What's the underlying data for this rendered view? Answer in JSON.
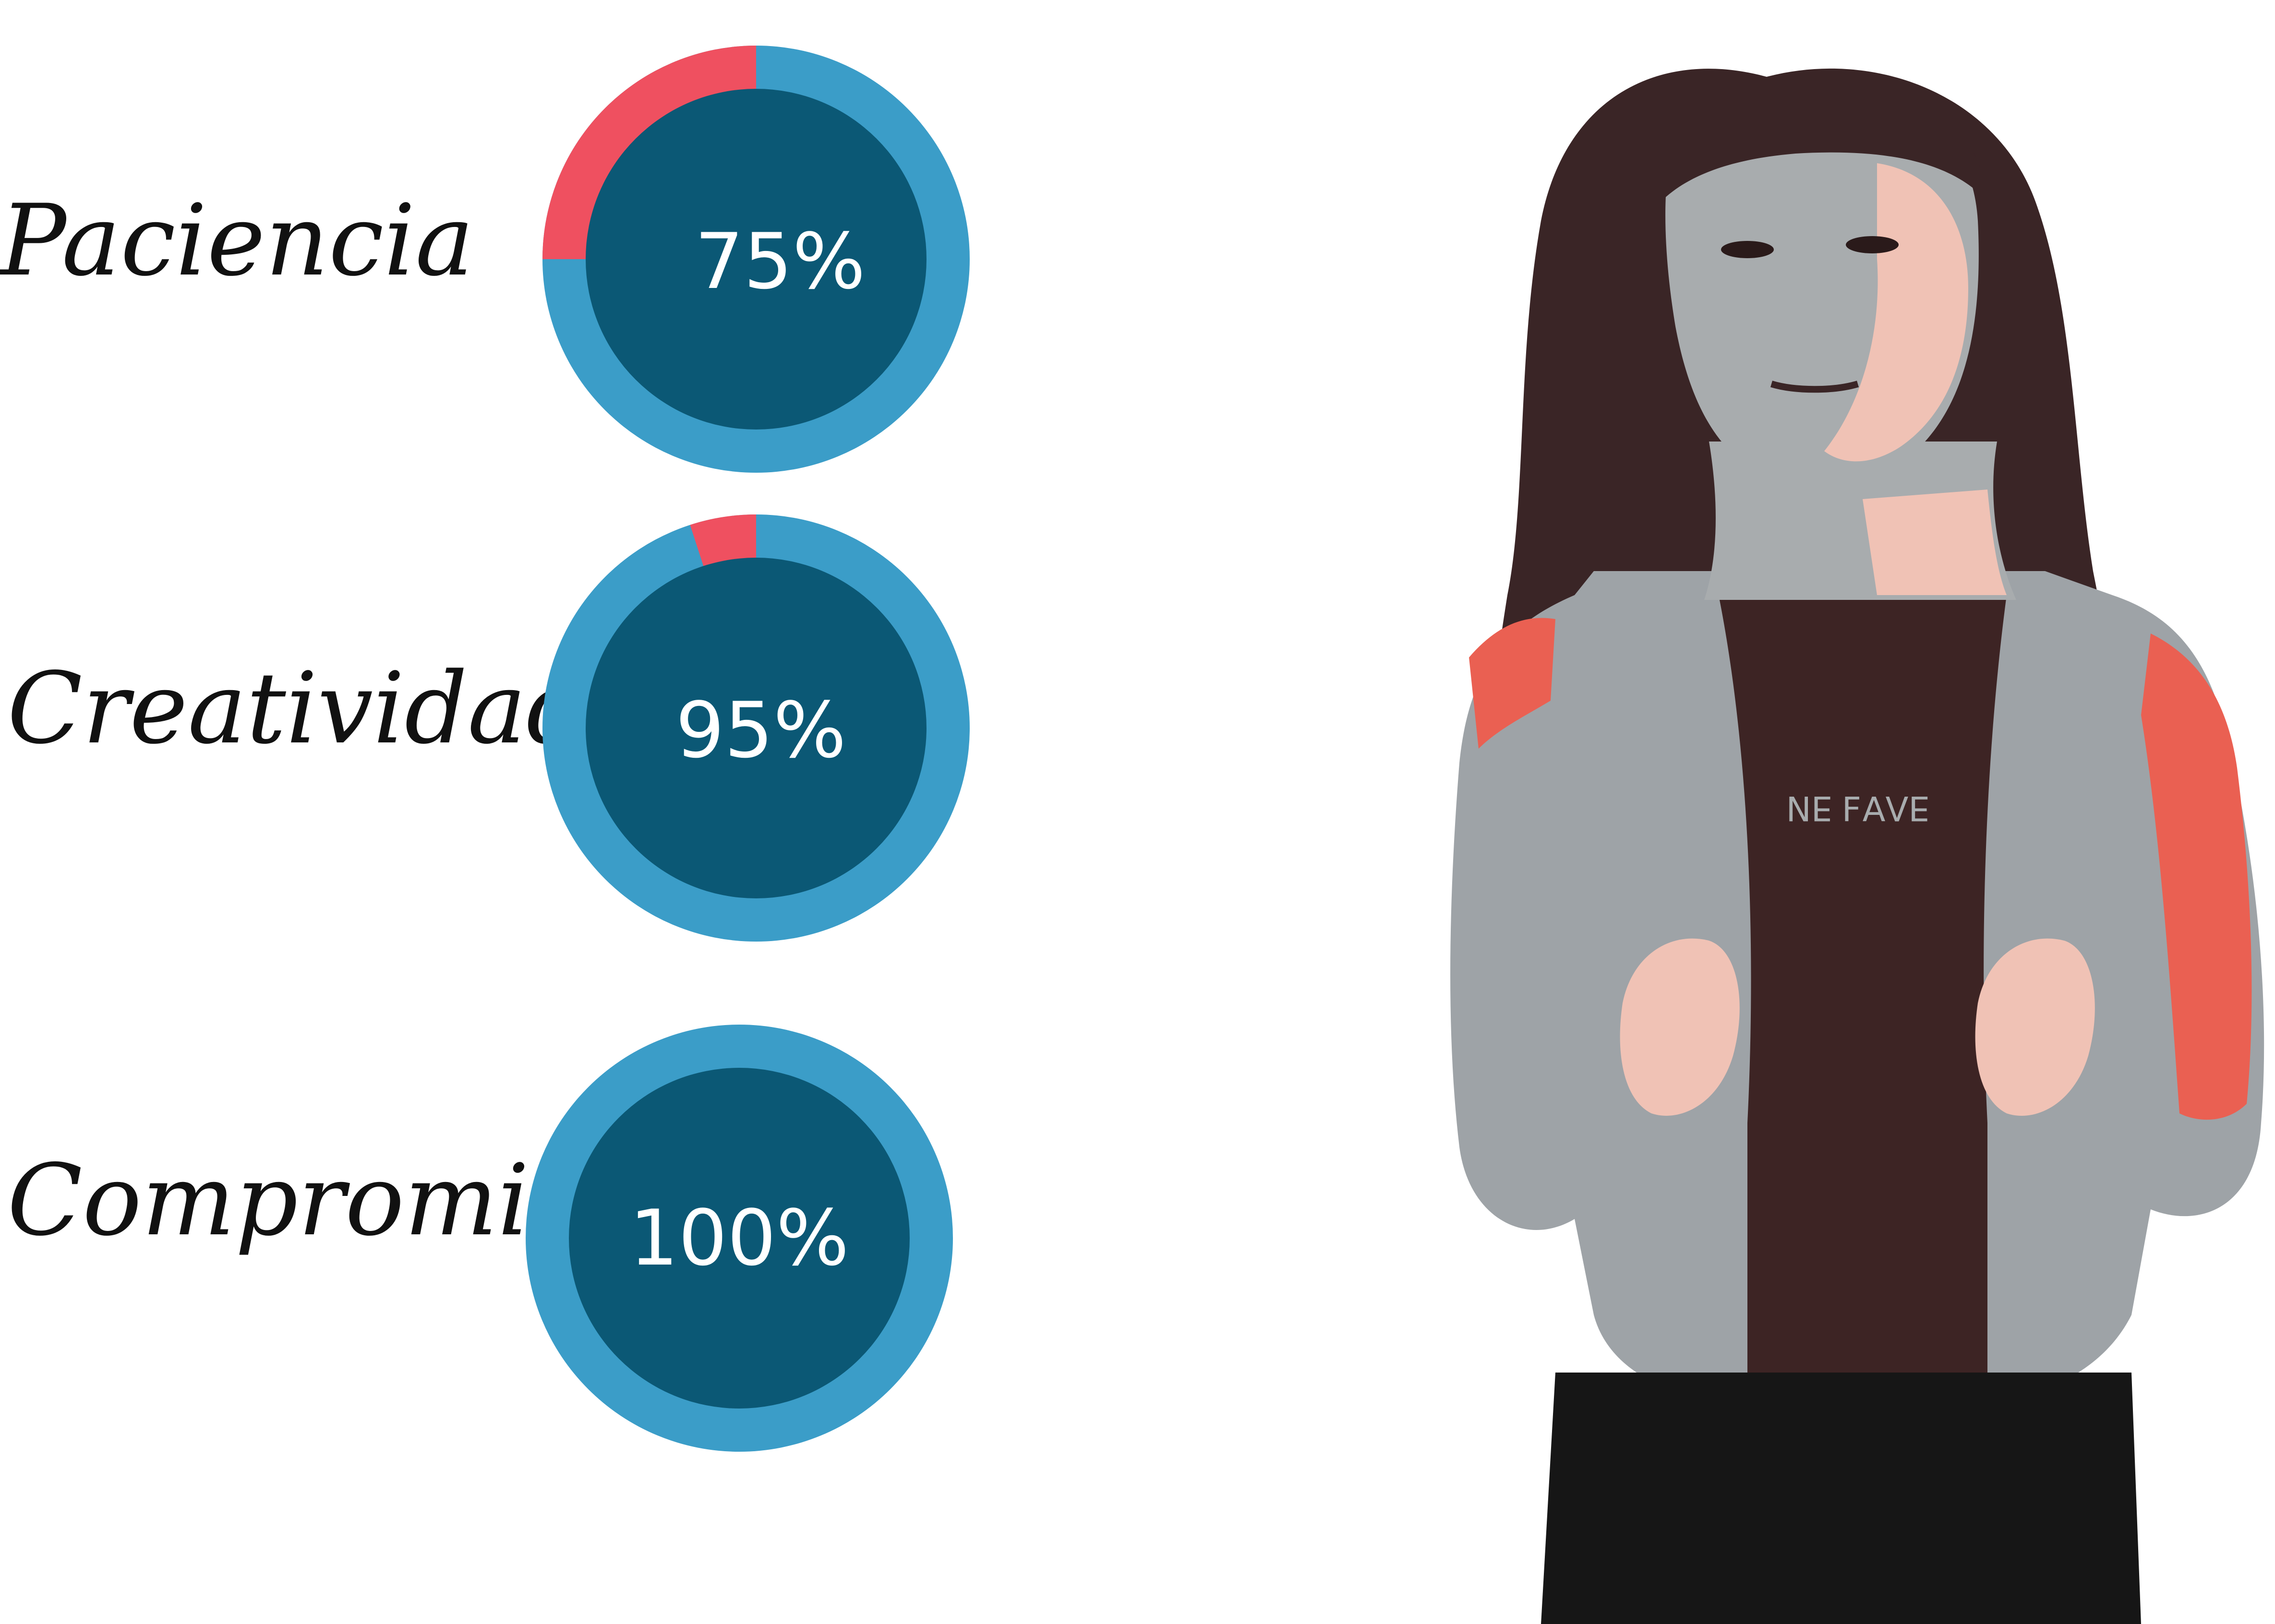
{
  "chart_data": {
    "type": "pie",
    "title": "",
    "colors": {
      "ring": "#3b9dc8",
      "remainder": "#ef5060",
      "inner": "#0b5875",
      "text": "#ffffff"
    },
    "items": [
      {
        "label": "Paciencia",
        "value": 75,
        "display": "75%"
      },
      {
        "label": "Creatividad",
        "value": 95,
        "display": "95%"
      },
      {
        "label": "Compromiso",
        "value": 100,
        "display": "100%"
      }
    ]
  },
  "portrait": {
    "icon": "person-portrait-illustration"
  }
}
